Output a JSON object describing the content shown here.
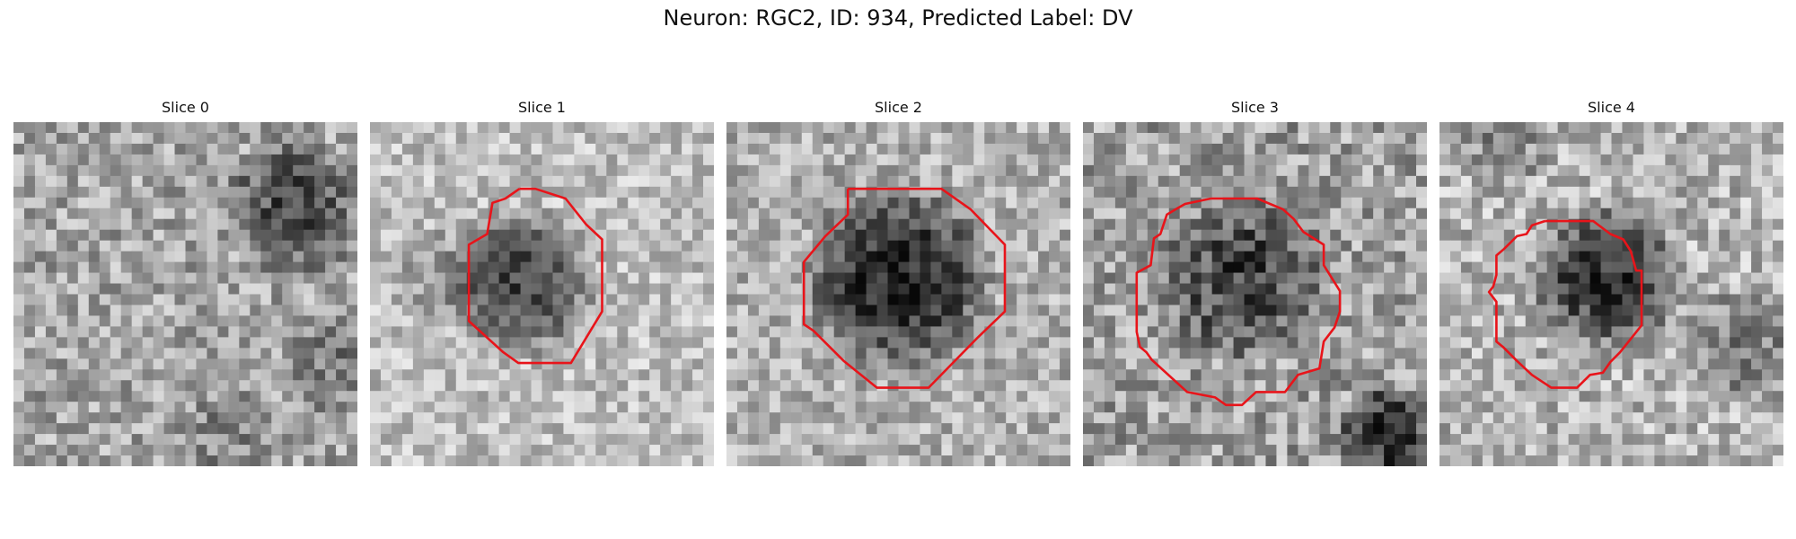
{
  "figure": {
    "title": "Neuron: RGC2, ID: 934, Predicted Label: DV"
  },
  "panels": [
    {
      "label": "Slice 0"
    },
    {
      "label": "Slice 1"
    },
    {
      "label": "Slice 2"
    },
    {
      "label": "Slice 3"
    },
    {
      "label": "Slice 4"
    }
  ],
  "colors": {
    "contour": "#e8141a"
  }
}
